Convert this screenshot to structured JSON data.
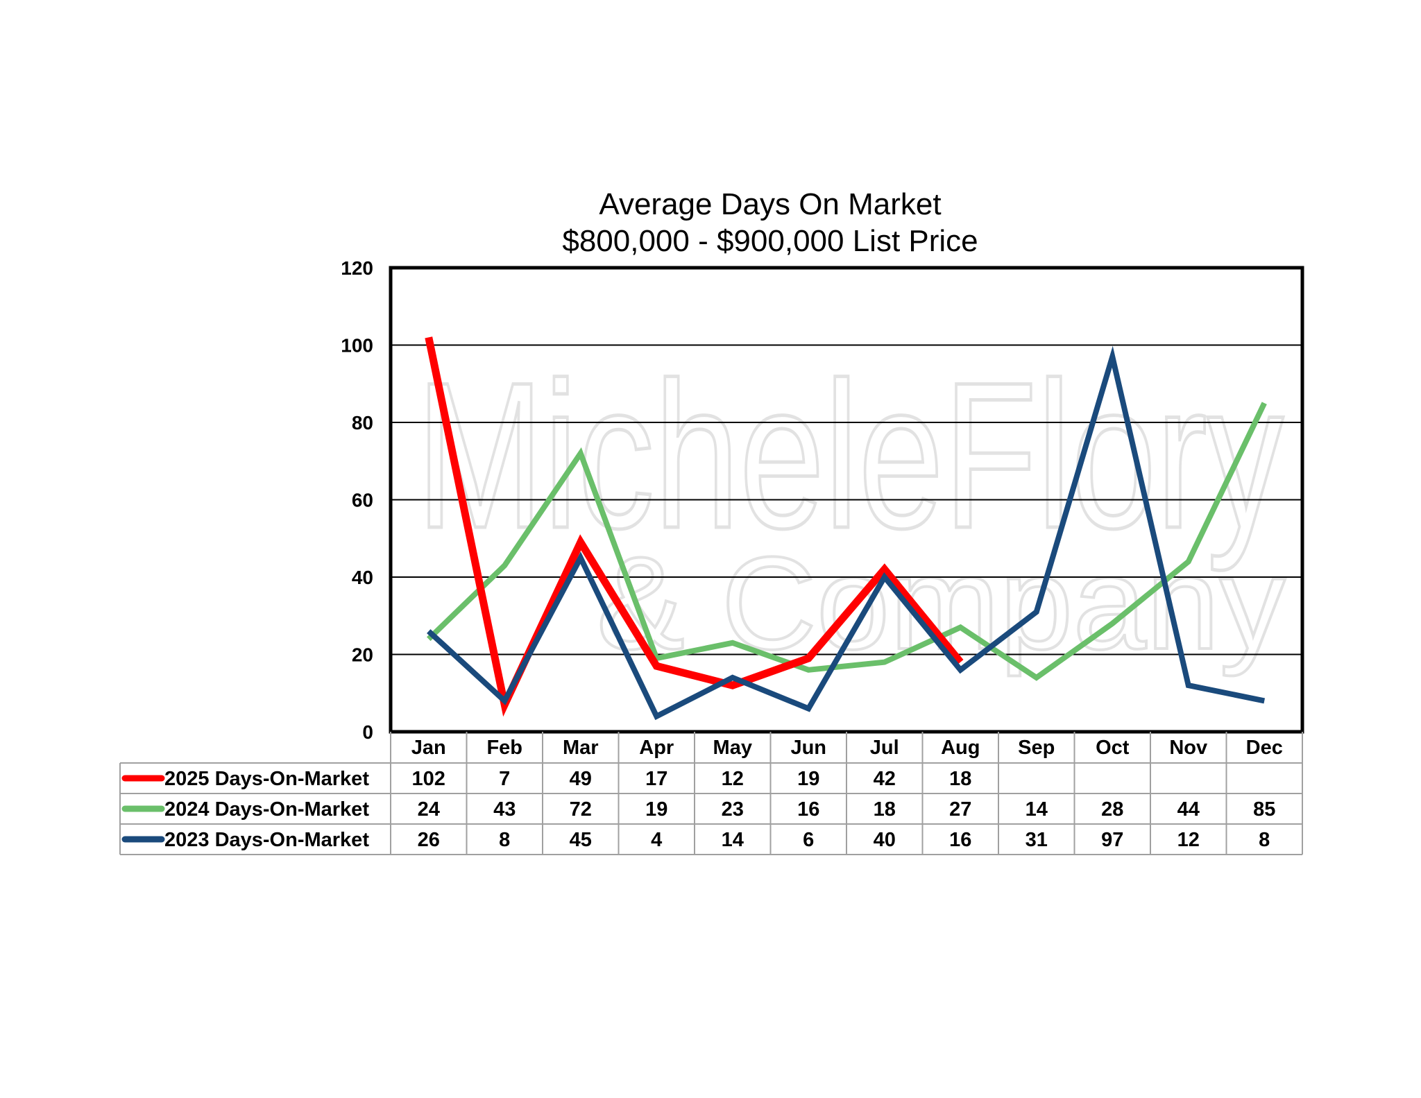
{
  "chart_data": {
    "type": "line",
    "title": "Average Days On Market",
    "subtitle": "$800,000 - $900,000 List Price",
    "xlabel": "",
    "ylabel": "",
    "ylim": [
      0,
      120
    ],
    "yticks": [
      0,
      20,
      40,
      60,
      80,
      100,
      120
    ],
    "grid": true,
    "legend": "data-table-below",
    "watermark": "MicheleFlory & Company",
    "categories": [
      "Jan",
      "Feb",
      "Mar",
      "Apr",
      "May",
      "Jun",
      "Jul",
      "Aug",
      "Sep",
      "Oct",
      "Nov",
      "Dec"
    ],
    "series": [
      {
        "name": "2025 Days-On-Market",
        "color": "#ff0000",
        "values": [
          102,
          7,
          49,
          17,
          12,
          19,
          42,
          18,
          null,
          null,
          null,
          null
        ]
      },
      {
        "name": "2024 Days-On-Market",
        "color": "#6abf6a",
        "values": [
          24,
          43,
          72,
          19,
          23,
          16,
          18,
          27,
          14,
          28,
          44,
          85
        ]
      },
      {
        "name": "2023 Days-On-Market",
        "color": "#1a4a7c",
        "values": [
          26,
          8,
          45,
          4,
          14,
          6,
          40,
          16,
          31,
          97,
          12,
          8
        ]
      }
    ]
  }
}
